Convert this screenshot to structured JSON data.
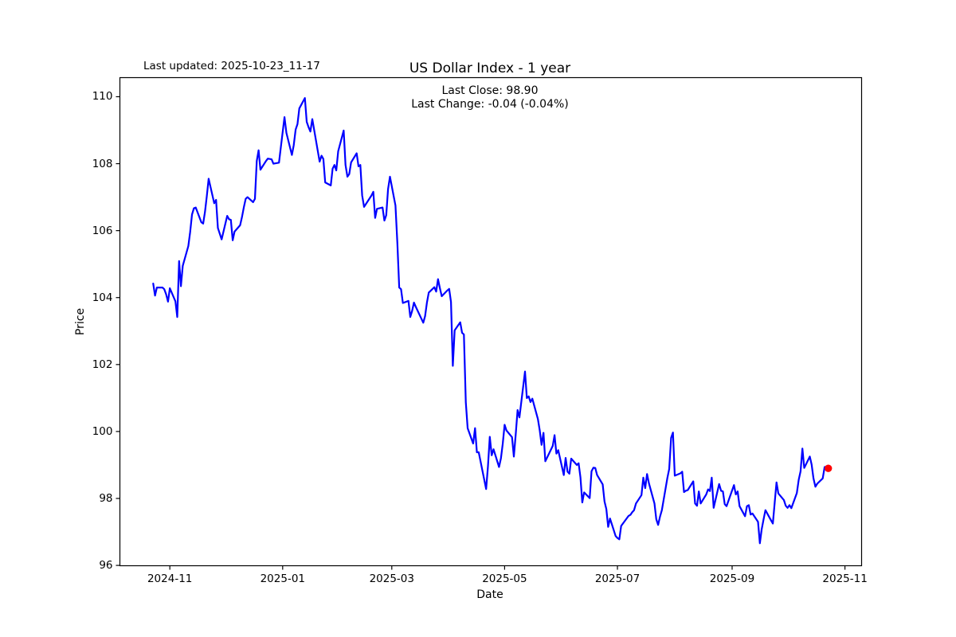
{
  "header": {
    "last_updated": "Last updated: 2025-10-23_11-17"
  },
  "chart_data": {
    "type": "line",
    "title": "US Dollar Index - 1 year",
    "subtitle_line1": "Last Close: 98.90",
    "subtitle_line2": "Last Change: -0.04 (-0.04%)",
    "last_close": 98.9,
    "last_change": "-0.04 (-0.04%)",
    "xlabel": "Date",
    "ylabel": "Price",
    "line_color": "#0000ff",
    "marker_color": "#ff0000",
    "axis_color": "#000000",
    "background_color": "#ffffff",
    "grid": false,
    "legend": false,
    "ylim": [
      95.99,
      110.57
    ],
    "xlim": [
      "2024-10-05",
      "2025-11-10"
    ],
    "yticks": [
      96,
      98,
      100,
      102,
      104,
      106,
      108,
      110
    ],
    "xticks": [
      {
        "label": "2024-11",
        "date": "2024-11-01"
      },
      {
        "label": "2025-01",
        "date": "2025-01-01"
      },
      {
        "label": "2025-03",
        "date": "2025-03-01"
      },
      {
        "label": "2025-05",
        "date": "2025-05-01"
      },
      {
        "label": "2025-07",
        "date": "2025-07-01"
      },
      {
        "label": "2025-09",
        "date": "2025-09-01"
      },
      {
        "label": "2025-11",
        "date": "2025-11-01"
      }
    ],
    "series": [
      {
        "name": "US Dollar Index",
        "points": [
          [
            "2024-10-23",
            104.42
          ],
          [
            "2024-10-24",
            104.06
          ],
          [
            "2024-10-25",
            104.3
          ],
          [
            "2024-10-28",
            104.3
          ],
          [
            "2024-10-29",
            104.25
          ],
          [
            "2024-10-30",
            104.1
          ],
          [
            "2024-10-31",
            103.88
          ],
          [
            "2024-11-01",
            104.28
          ],
          [
            "2024-11-04",
            103.89
          ],
          [
            "2024-11-05",
            103.42
          ],
          [
            "2024-11-06",
            105.09
          ],
          [
            "2024-11-07",
            104.34
          ],
          [
            "2024-11-08",
            104.95
          ],
          [
            "2024-11-11",
            105.54
          ],
          [
            "2024-11-12",
            105.96
          ],
          [
            "2024-11-13",
            106.48
          ],
          [
            "2024-11-14",
            106.67
          ],
          [
            "2024-11-15",
            106.69
          ],
          [
            "2024-11-18",
            106.25
          ],
          [
            "2024-11-19",
            106.21
          ],
          [
            "2024-11-20",
            106.56
          ],
          [
            "2024-11-21",
            107.03
          ],
          [
            "2024-11-22",
            107.55
          ],
          [
            "2024-11-25",
            106.82
          ],
          [
            "2024-11-26",
            106.92
          ],
          [
            "2024-11-27",
            106.08
          ],
          [
            "2024-11-29",
            105.74
          ],
          [
            "2024-12-02",
            106.44
          ],
          [
            "2024-12-03",
            106.34
          ],
          [
            "2024-12-04",
            106.32
          ],
          [
            "2024-12-05",
            105.71
          ],
          [
            "2024-12-06",
            105.97
          ],
          [
            "2024-12-09",
            106.16
          ],
          [
            "2024-12-10",
            106.4
          ],
          [
            "2024-12-11",
            106.7
          ],
          [
            "2024-12-12",
            106.95
          ],
          [
            "2024-12-13",
            107.0
          ],
          [
            "2024-12-16",
            106.85
          ],
          [
            "2024-12-17",
            106.95
          ],
          [
            "2024-12-18",
            108.08
          ],
          [
            "2024-12-19",
            108.4
          ],
          [
            "2024-12-20",
            107.82
          ],
          [
            "2024-12-23",
            108.08
          ],
          [
            "2024-12-24",
            108.15
          ],
          [
            "2024-12-26",
            108.13
          ],
          [
            "2024-12-27",
            108.0
          ],
          [
            "2024-12-30",
            108.03
          ],
          [
            "2024-12-31",
            108.49
          ],
          [
            "2025-01-02",
            109.39
          ],
          [
            "2025-01-03",
            108.92
          ],
          [
            "2025-01-06",
            108.26
          ],
          [
            "2025-01-07",
            108.55
          ],
          [
            "2025-01-08",
            109.02
          ],
          [
            "2025-01-09",
            109.18
          ],
          [
            "2025-01-10",
            109.65
          ],
          [
            "2025-01-13",
            109.96
          ],
          [
            "2025-01-14",
            109.25
          ],
          [
            "2025-01-15",
            109.09
          ],
          [
            "2025-01-16",
            108.96
          ],
          [
            "2025-01-17",
            109.33
          ],
          [
            "2025-01-21",
            108.06
          ],
          [
            "2025-01-22",
            108.24
          ],
          [
            "2025-01-23",
            108.14
          ],
          [
            "2025-01-24",
            107.44
          ],
          [
            "2025-01-27",
            107.35
          ],
          [
            "2025-01-28",
            107.85
          ],
          [
            "2025-01-29",
            107.96
          ],
          [
            "2025-01-30",
            107.8
          ],
          [
            "2025-01-31",
            108.37
          ],
          [
            "2025-02-03",
            108.99
          ],
          [
            "2025-02-04",
            107.96
          ],
          [
            "2025-02-05",
            107.61
          ],
          [
            "2025-02-06",
            107.69
          ],
          [
            "2025-02-07",
            108.04
          ],
          [
            "2025-02-10",
            108.31
          ],
          [
            "2025-02-11",
            107.92
          ],
          [
            "2025-02-12",
            107.96
          ],
          [
            "2025-02-13",
            107.05
          ],
          [
            "2025-02-14",
            106.71
          ],
          [
            "2025-02-18",
            107.05
          ],
          [
            "2025-02-19",
            107.16
          ],
          [
            "2025-02-20",
            106.38
          ],
          [
            "2025-02-21",
            106.65
          ],
          [
            "2025-02-24",
            106.69
          ],
          [
            "2025-02-25",
            106.3
          ],
          [
            "2025-02-26",
            106.46
          ],
          [
            "2025-02-27",
            107.24
          ],
          [
            "2025-02-28",
            107.61
          ],
          [
            "2025-03-03",
            106.75
          ],
          [
            "2025-03-04",
            105.62
          ],
          [
            "2025-03-05",
            104.3
          ],
          [
            "2025-03-06",
            104.25
          ],
          [
            "2025-03-07",
            103.84
          ],
          [
            "2025-03-10",
            103.9
          ],
          [
            "2025-03-11",
            103.42
          ],
          [
            "2025-03-12",
            103.6
          ],
          [
            "2025-03-13",
            103.85
          ],
          [
            "2025-03-14",
            103.72
          ],
          [
            "2025-03-17",
            103.37
          ],
          [
            "2025-03-18",
            103.25
          ],
          [
            "2025-03-19",
            103.45
          ],
          [
            "2025-03-20",
            103.85
          ],
          [
            "2025-03-21",
            104.15
          ],
          [
            "2025-03-24",
            104.31
          ],
          [
            "2025-03-25",
            104.18
          ],
          [
            "2025-03-26",
            104.55
          ],
          [
            "2025-03-27",
            104.28
          ],
          [
            "2025-03-28",
            104.04
          ],
          [
            "2025-03-31",
            104.21
          ],
          [
            "2025-04-01",
            104.26
          ],
          [
            "2025-04-02",
            103.87
          ],
          [
            "2025-04-03",
            101.96
          ],
          [
            "2025-04-04",
            103.02
          ],
          [
            "2025-04-07",
            103.26
          ],
          [
            "2025-04-08",
            102.95
          ],
          [
            "2025-04-09",
            102.9
          ],
          [
            "2025-04-10",
            100.87
          ],
          [
            "2025-04-11",
            100.1
          ],
          [
            "2025-04-14",
            99.64
          ],
          [
            "2025-04-15",
            100.1
          ],
          [
            "2025-04-16",
            99.38
          ],
          [
            "2025-04-17",
            99.38
          ],
          [
            "2025-04-21",
            98.28
          ],
          [
            "2025-04-22",
            98.96
          ],
          [
            "2025-04-23",
            99.84
          ],
          [
            "2025-04-24",
            99.29
          ],
          [
            "2025-04-25",
            99.47
          ],
          [
            "2025-04-28",
            98.94
          ],
          [
            "2025-04-29",
            99.2
          ],
          [
            "2025-04-30",
            99.64
          ],
          [
            "2025-05-01",
            100.2
          ],
          [
            "2025-05-02",
            100.03
          ],
          [
            "2025-05-05",
            99.83
          ],
          [
            "2025-05-06",
            99.25
          ],
          [
            "2025-05-07",
            99.9
          ],
          [
            "2025-05-08",
            100.64
          ],
          [
            "2025-05-09",
            100.42
          ],
          [
            "2025-05-12",
            101.79
          ],
          [
            "2025-05-13",
            101.0
          ],
          [
            "2025-05-14",
            101.05
          ],
          [
            "2025-05-15",
            100.88
          ],
          [
            "2025-05-16",
            100.98
          ],
          [
            "2025-05-19",
            100.37
          ],
          [
            "2025-05-20",
            100.03
          ],
          [
            "2025-05-21",
            99.6
          ],
          [
            "2025-05-22",
            99.96
          ],
          [
            "2025-05-23",
            99.11
          ],
          [
            "2025-05-27",
            99.57
          ],
          [
            "2025-05-28",
            99.89
          ],
          [
            "2025-05-29",
            99.34
          ],
          [
            "2025-05-30",
            99.44
          ],
          [
            "2025-06-02",
            98.7
          ],
          [
            "2025-06-03",
            99.21
          ],
          [
            "2025-06-04",
            98.8
          ],
          [
            "2025-06-05",
            98.74
          ],
          [
            "2025-06-06",
            99.19
          ],
          [
            "2025-06-09",
            99.0
          ],
          [
            "2025-06-10",
            99.05
          ],
          [
            "2025-06-11",
            98.63
          ],
          [
            "2025-06-12",
            97.88
          ],
          [
            "2025-06-13",
            98.18
          ],
          [
            "2025-06-16",
            98.01
          ],
          [
            "2025-06-17",
            98.81
          ],
          [
            "2025-06-18",
            98.92
          ],
          [
            "2025-06-19",
            98.91
          ],
          [
            "2025-06-20",
            98.7
          ],
          [
            "2025-06-23",
            98.42
          ],
          [
            "2025-06-24",
            97.91
          ],
          [
            "2025-06-25",
            97.68
          ],
          [
            "2025-06-26",
            97.15
          ],
          [
            "2025-06-27",
            97.4
          ],
          [
            "2025-06-30",
            96.88
          ],
          [
            "2025-07-01",
            96.82
          ],
          [
            "2025-07-02",
            96.78
          ],
          [
            "2025-07-03",
            97.18
          ],
          [
            "2025-07-07",
            97.48
          ],
          [
            "2025-07-08",
            97.51
          ],
          [
            "2025-07-09",
            97.59
          ],
          [
            "2025-07-10",
            97.65
          ],
          [
            "2025-07-11",
            97.85
          ],
          [
            "2025-07-14",
            98.1
          ],
          [
            "2025-07-15",
            98.62
          ],
          [
            "2025-07-16",
            98.31
          ],
          [
            "2025-07-17",
            98.73
          ],
          [
            "2025-07-18",
            98.46
          ],
          [
            "2025-07-21",
            97.85
          ],
          [
            "2025-07-22",
            97.38
          ],
          [
            "2025-07-23",
            97.21
          ],
          [
            "2025-07-24",
            97.45
          ],
          [
            "2025-07-25",
            97.65
          ],
          [
            "2025-07-28",
            98.61
          ],
          [
            "2025-07-29",
            98.88
          ],
          [
            "2025-07-30",
            99.81
          ],
          [
            "2025-07-31",
            99.97
          ],
          [
            "2025-08-01",
            98.68
          ],
          [
            "2025-08-04",
            98.75
          ],
          [
            "2025-08-05",
            98.8
          ],
          [
            "2025-08-06",
            98.19
          ],
          [
            "2025-08-07",
            98.23
          ],
          [
            "2025-08-08",
            98.25
          ],
          [
            "2025-08-11",
            98.51
          ],
          [
            "2025-08-12",
            97.85
          ],
          [
            "2025-08-13",
            97.78
          ],
          [
            "2025-08-14",
            98.21
          ],
          [
            "2025-08-15",
            97.85
          ],
          [
            "2025-08-18",
            98.12
          ],
          [
            "2025-08-19",
            98.27
          ],
          [
            "2025-08-20",
            98.22
          ],
          [
            "2025-08-21",
            98.62
          ],
          [
            "2025-08-22",
            97.72
          ],
          [
            "2025-08-25",
            98.43
          ],
          [
            "2025-08-26",
            98.23
          ],
          [
            "2025-08-27",
            98.21
          ],
          [
            "2025-08-28",
            97.83
          ],
          [
            "2025-08-29",
            97.77
          ],
          [
            "2025-09-02",
            98.4
          ],
          [
            "2025-09-03",
            98.12
          ],
          [
            "2025-09-04",
            98.21
          ],
          [
            "2025-09-05",
            97.77
          ],
          [
            "2025-09-08",
            97.47
          ],
          [
            "2025-09-09",
            97.77
          ],
          [
            "2025-09-10",
            97.8
          ],
          [
            "2025-09-11",
            97.52
          ],
          [
            "2025-09-12",
            97.55
          ],
          [
            "2025-09-15",
            97.3
          ],
          [
            "2025-09-16",
            96.66
          ],
          [
            "2025-09-17",
            97.08
          ],
          [
            "2025-09-18",
            97.38
          ],
          [
            "2025-09-19",
            97.65
          ],
          [
            "2025-09-22",
            97.35
          ],
          [
            "2025-09-23",
            97.25
          ],
          [
            "2025-09-24",
            97.87
          ],
          [
            "2025-09-25",
            98.48
          ],
          [
            "2025-09-26",
            98.15
          ],
          [
            "2025-09-29",
            97.95
          ],
          [
            "2025-09-30",
            97.78
          ],
          [
            "2025-10-01",
            97.72
          ],
          [
            "2025-10-02",
            97.8
          ],
          [
            "2025-10-03",
            97.71
          ],
          [
            "2025-10-06",
            98.16
          ],
          [
            "2025-10-07",
            98.56
          ],
          [
            "2025-10-08",
            98.81
          ],
          [
            "2025-10-09",
            99.49
          ],
          [
            "2025-10-10",
            98.91
          ],
          [
            "2025-10-13",
            99.25
          ],
          [
            "2025-10-14",
            99.01
          ],
          [
            "2025-10-15",
            98.6
          ],
          [
            "2025-10-16",
            98.35
          ],
          [
            "2025-10-17",
            98.44
          ],
          [
            "2025-10-20",
            98.6
          ],
          [
            "2025-10-21",
            98.94
          ],
          [
            "2025-10-22",
            98.94
          ],
          [
            "2025-10-23",
            98.9
          ]
        ]
      }
    ]
  }
}
